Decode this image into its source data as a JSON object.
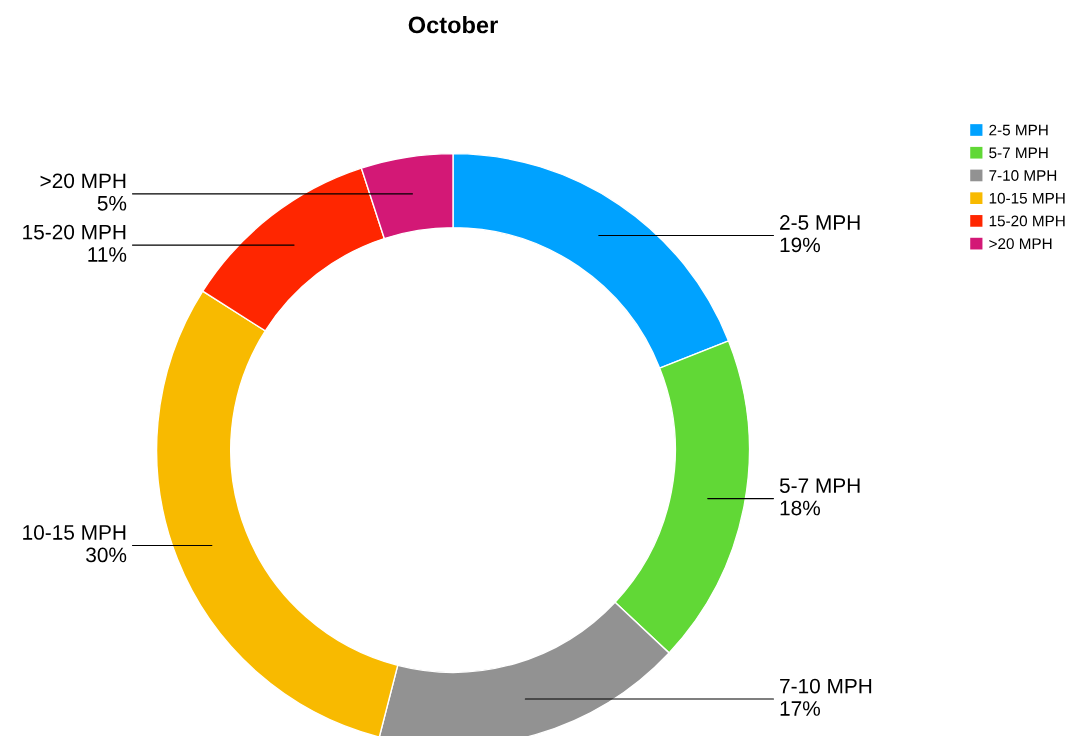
{
  "chart_data": {
    "type": "donut",
    "title": "October",
    "categories": [
      "2-5 MPH",
      "5-7 MPH",
      "7-10 MPH",
      "10-15 MPH",
      "15-20 MPH",
      ">20 MPH"
    ],
    "values": [
      19,
      18,
      17,
      30,
      11,
      5
    ],
    "colors": [
      "#00a2ff",
      "#61d836",
      "#929292",
      "#f8ba00",
      "#ff2600",
      "#d31876"
    ],
    "value_labels": [
      "19%",
      "18%",
      "17%",
      "30%",
      "11%",
      "5%"
    ],
    "legend": "top right"
  }
}
